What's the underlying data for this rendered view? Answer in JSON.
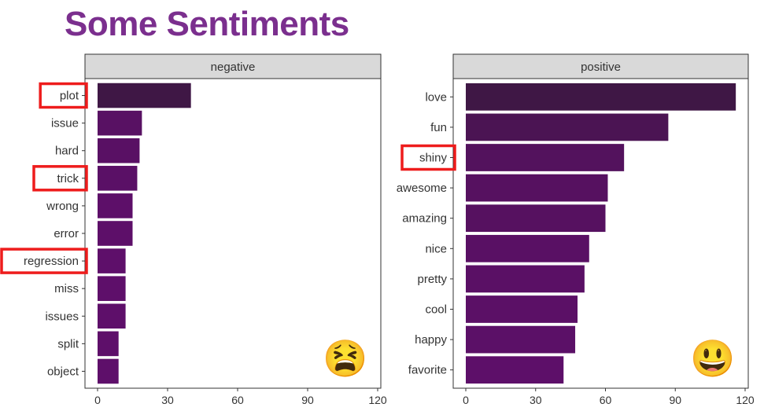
{
  "title": "Some Sentiments",
  "colors": {
    "title": "#7b2f8e",
    "strip_bg": "#d9d9d9",
    "highlight": "#ee1c1c"
  },
  "chart_data": [
    {
      "type": "bar",
      "orientation": "horizontal",
      "facet": "negative",
      "categories": [
        "plot",
        "issue",
        "hard",
        "trick",
        "wrong",
        "error",
        "regression",
        "miss",
        "issues",
        "split",
        "object"
      ],
      "values": [
        40,
        19,
        18,
        17,
        15,
        15,
        12,
        12,
        12,
        9,
        9
      ],
      "highlighted": [
        "plot",
        "trick",
        "regression"
      ],
      "xlim": [
        0,
        120
      ],
      "xticks": [
        0,
        30,
        60,
        90,
        120
      ],
      "grid": false,
      "emoji": "😫",
      "emoji_name": "tired-face-icon"
    },
    {
      "type": "bar",
      "orientation": "horizontal",
      "facet": "positive",
      "categories": [
        "love",
        "fun",
        "shiny",
        "awesome",
        "amazing",
        "nice",
        "pretty",
        "cool",
        "happy",
        "favorite"
      ],
      "values": [
        116,
        87,
        68,
        61,
        60,
        53,
        51,
        48,
        47,
        42
      ],
      "highlighted": [
        "shiny"
      ],
      "xlim": [
        0,
        120
      ],
      "xticks": [
        0,
        30,
        60,
        90,
        120
      ],
      "grid": false,
      "emoji": "😃",
      "emoji_name": "smiley-face-icon"
    }
  ]
}
